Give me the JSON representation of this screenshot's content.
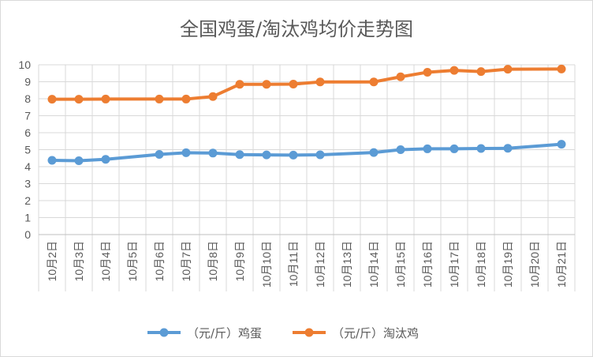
{
  "chart_data": {
    "type": "line",
    "title": "全国鸡蛋/淘汰鸡均价走势图",
    "xlabel": "",
    "ylabel": "",
    "ylim": [
      0,
      10
    ],
    "yticks": [
      0,
      1,
      2,
      3,
      4,
      5,
      6,
      7,
      8,
      9,
      10
    ],
    "grid": true,
    "legend_position": "bottom",
    "categories": [
      "10月2日",
      "10月3日",
      "10月4日",
      "10月5日",
      "10月6日",
      "10月7日",
      "10月8日",
      "10月9日",
      "10月10日",
      "10月11日",
      "10月12日",
      "10月13日",
      "10月14日",
      "10月15日",
      "10月16日",
      "10月17日",
      "10月18日",
      "10月19日",
      "10月20日",
      "10月21日"
    ],
    "series": [
      {
        "name": "（元/斤）鸡蛋",
        "color": "#5b9bd5",
        "values": [
          4.37,
          4.35,
          4.43,
          null,
          4.72,
          4.82,
          4.8,
          4.71,
          4.69,
          4.68,
          4.7,
          null,
          4.83,
          5.0,
          5.05,
          5.05,
          5.07,
          5.08,
          null,
          5.32
        ]
      },
      {
        "name": "（元/斤）淘汰鸡",
        "color": "#ed7d31",
        "values": [
          7.97,
          7.97,
          7.98,
          null,
          7.98,
          7.98,
          8.13,
          8.85,
          8.85,
          8.86,
          8.99,
          null,
          8.99,
          9.29,
          9.56,
          9.67,
          9.6,
          9.74,
          null,
          9.75
        ]
      }
    ]
  }
}
